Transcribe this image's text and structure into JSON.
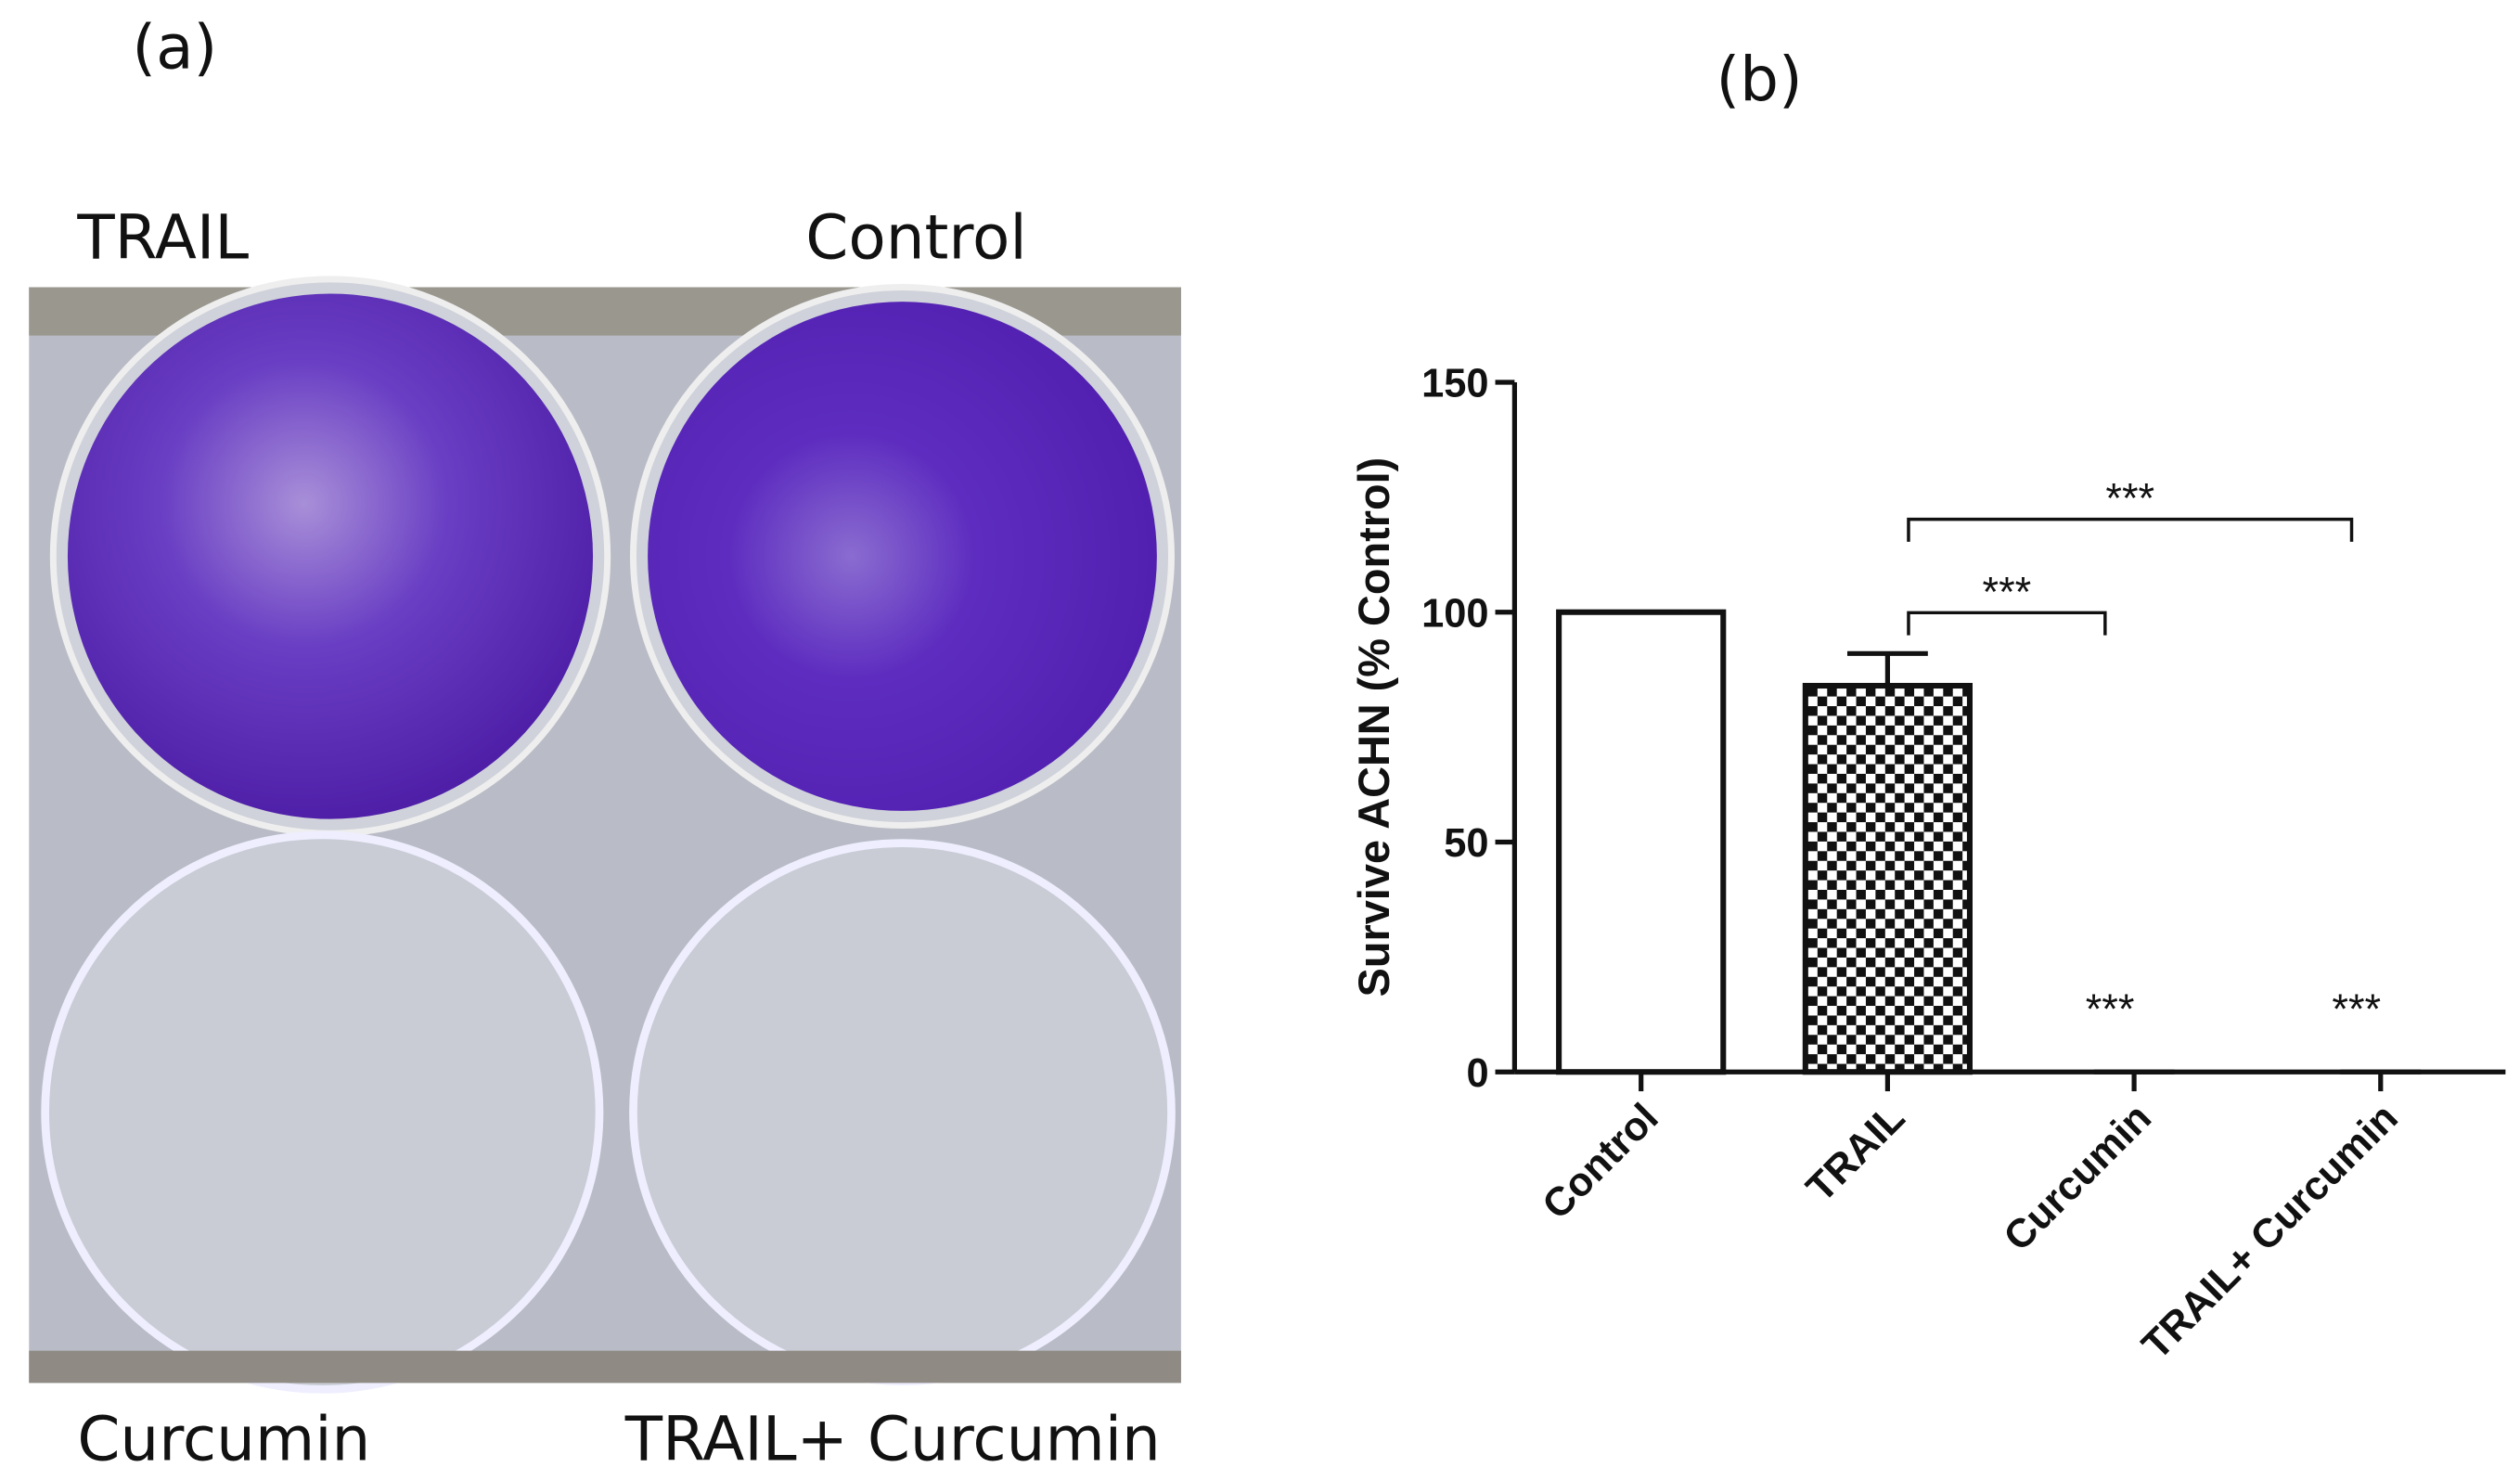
{
  "panel_a": {
    "label": "(a)",
    "wells": [
      "TRAIL",
      "Control",
      "Curcumin",
      "TRAIL+ Curcumin"
    ]
  },
  "chart_data": {
    "type": "bar",
    "panel_label": "(b)",
    "y_label": "Survive ACHN (% Control)",
    "categories": [
      "Control",
      "TRAIL",
      "Curcumin",
      "TRAIL+ Curcumin"
    ],
    "values": [
      100,
      84,
      0,
      0
    ],
    "errors": [
      0,
      7,
      0,
      0
    ],
    "color": "#ffffff",
    "patterns": [
      "none",
      "checkered",
      "none",
      "none"
    ],
    "ylim": [
      0,
      150
    ],
    "yticks": [
      0,
      50,
      100,
      150
    ],
    "bar_labels": [
      null,
      null,
      "***",
      "***"
    ],
    "brackets": [
      {
        "label": "***"
      },
      {
        "label": "***"
      }
    ]
  }
}
